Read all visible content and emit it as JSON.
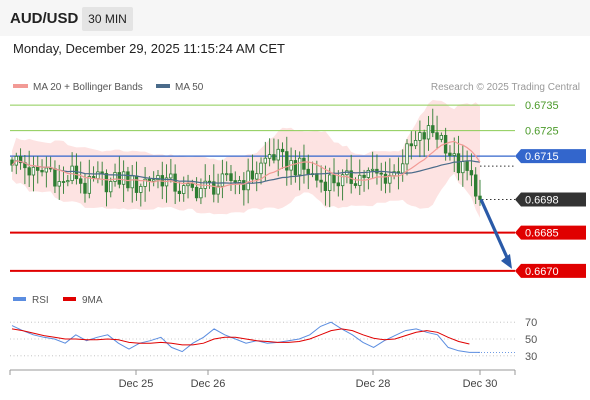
{
  "header": {
    "symbol": "AUD/USD",
    "timeframe": "30 MIN"
  },
  "timestamp": "Monday, December 29, 2025 11:15:24 AM CET",
  "legend": {
    "ma20_label": "MA 20 + Bollinger Bands",
    "ma50_label": "MA 50",
    "credit": "Research © 2025 Trading Central",
    "rsi_label": "RSI",
    "rsi_ma_label": "9MA"
  },
  "colors": {
    "candle": "#2e7d32",
    "ma20": "#f29a95",
    "band_fill": "#fde3e2",
    "ma50": "#4a6b8a",
    "blue_level": "#3366cc",
    "red_level": "#e00000",
    "green_level": "#8ccc55",
    "arrow": "#2a5aa8",
    "rsi": "#5b8de0",
    "rsi_ma": "#e00000",
    "last_price_bg": "#333333"
  },
  "chart_data": [
    {
      "type": "candlestick",
      "title": "AUD/USD",
      "timeframe": "30 MIN",
      "x_ticks": [
        "Dec 25",
        "Dec 26",
        "Dec 28",
        "Dec 30"
      ],
      "ylim": [
        0.6668,
        0.6737
      ],
      "series": [
        {
          "name": "MA 20 + Bollinger Bands",
          "type": "line+band"
        },
        {
          "name": "MA 50",
          "type": "line"
        }
      ],
      "price_path": [
        0.6714,
        0.6711,
        0.6707,
        0.6711,
        0.6703,
        0.6709,
        0.6702,
        0.6706,
        0.6704,
        0.6707,
        0.6703,
        0.6706,
        0.6707,
        0.6704,
        0.6701,
        0.6702,
        0.6703,
        0.6704,
        0.6706,
        0.6705,
        0.671,
        0.6716,
        0.6713,
        0.6711,
        0.6709,
        0.6705,
        0.6706,
        0.6705,
        0.6707,
        0.6708,
        0.6707,
        0.6708,
        0.6716,
        0.6721,
        0.6725,
        0.6722,
        0.6712,
        0.6708,
        0.67
      ],
      "levels": [
        {
          "value": 0.6735,
          "style": "resistance-green",
          "label": "0.6735"
        },
        {
          "value": 0.6725,
          "style": "resistance-green",
          "label": "0.6725"
        },
        {
          "value": 0.6715,
          "style": "pivot-blue",
          "label": "0.6715"
        },
        {
          "value": 0.6698,
          "style": "last-price",
          "label": "0.6698"
        },
        {
          "value": 0.6685,
          "style": "support-red",
          "label": "0.6685"
        },
        {
          "value": 0.667,
          "style": "support-red",
          "label": "0.6670"
        }
      ],
      "forecast_arrow": {
        "from": 0.6698,
        "to": 0.667,
        "direction": "down"
      }
    },
    {
      "type": "line",
      "title": "RSI",
      "series": [
        {
          "name": "RSI",
          "values": [
            66,
            60,
            55,
            52,
            50,
            45,
            55,
            48,
            52,
            55,
            45,
            38,
            45,
            48,
            52,
            40,
            35,
            45,
            52,
            62,
            55,
            50,
            45,
            48,
            45,
            46,
            48,
            50,
            55,
            65,
            70,
            62,
            55,
            46,
            40,
            48,
            54,
            60,
            62,
            58,
            55,
            40,
            36,
            34,
            34
          ]
        },
        {
          "name": "9MA",
          "values": [
            62,
            60,
            57,
            54,
            52,
            50,
            50,
            49,
            49,
            50,
            49,
            46,
            45,
            45,
            46,
            45,
            43,
            43,
            45,
            50,
            52,
            52,
            50,
            48,
            47,
            46,
            46,
            47,
            50,
            55,
            60,
            62,
            60,
            55,
            51,
            49,
            50,
            54,
            58,
            60,
            58,
            52,
            47,
            44,
            null
          ]
        }
      ],
      "y_ticks": [
        70,
        50,
        30
      ],
      "ylim": [
        25,
        75
      ]
    }
  ]
}
